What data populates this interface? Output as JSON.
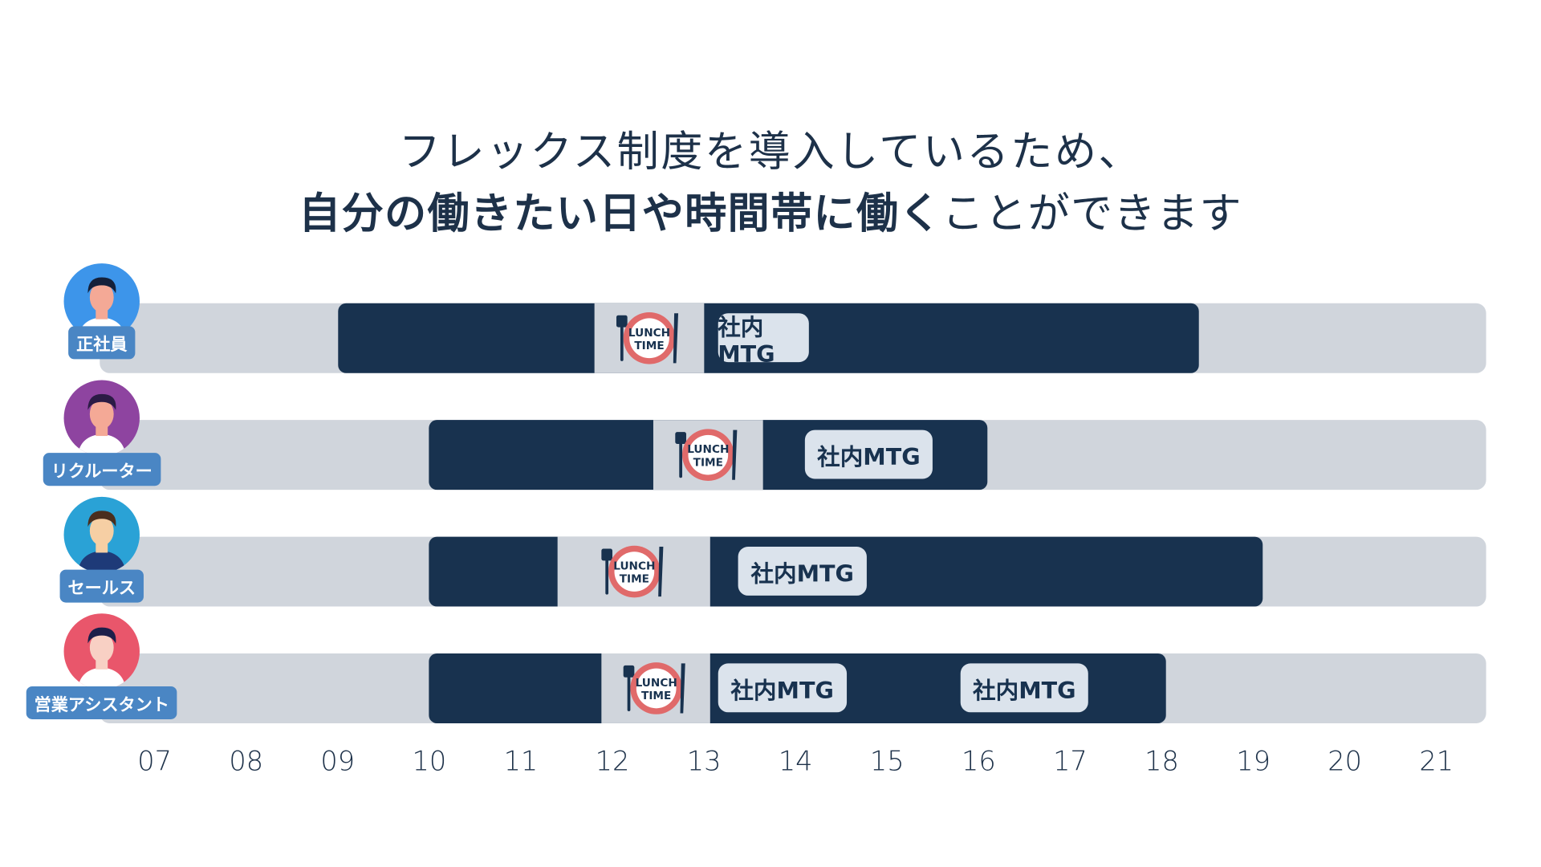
{
  "title": {
    "line1": "フレックス制度を導入しているため、",
    "line2_bold": "自分の働きたい日や時間帯に働く",
    "line2_regular": "ことができます"
  },
  "colors": {
    "work": "#18324f",
    "track": "#d0d5dc",
    "label": "#4a86c4",
    "title": "#1d3149",
    "lunch_ring": "#e06a6a"
  },
  "lunch_icon": {
    "name": "lunch-time-plate-icon",
    "text": [
      "LUNCH",
      "TIME"
    ]
  },
  "chart_data": {
    "type": "gantt",
    "x_ticks": [
      "07",
      "08",
      "09",
      "10",
      "11",
      "12",
      "13",
      "14",
      "15",
      "16",
      "17",
      "18",
      "19",
      "20",
      "21"
    ],
    "xlim": [
      7,
      21
    ],
    "rows": [
      {
        "role": "正社員",
        "avatar_color": "#3d95ea",
        "work": [
          9.0,
          18.4
        ],
        "lunch": [
          11.8,
          13.0
        ],
        "meetings": [
          {
            "label": "社内MTG",
            "span": [
              13.15,
              14.15
            ]
          }
        ]
      },
      {
        "role": "リクルーター",
        "avatar_color": "#8e44a0",
        "work": [
          10.0,
          16.1
        ],
        "lunch": [
          12.45,
          13.65
        ],
        "meetings": [
          {
            "label": "社内MTG",
            "span": [
              14.1,
              15.5
            ]
          }
        ]
      },
      {
        "role": "セールス",
        "avatar_color": "#2aa2d6",
        "work": [
          10.0,
          19.1
        ],
        "lunch": [
          11.4,
          13.07
        ],
        "meetings": [
          {
            "label": "社内MTG",
            "span": [
              13.37,
              14.78
            ]
          }
        ]
      },
      {
        "role": "営業アシスタント",
        "avatar_color": "#e9566b",
        "work": [
          10.0,
          18.05
        ],
        "lunch": [
          11.88,
          13.07
        ],
        "meetings": [
          {
            "label": "社内MTG",
            "span": [
              13.15,
              14.56
            ]
          },
          {
            "label": "社内MTG",
            "span": [
              15.8,
              17.2
            ]
          }
        ]
      }
    ]
  }
}
